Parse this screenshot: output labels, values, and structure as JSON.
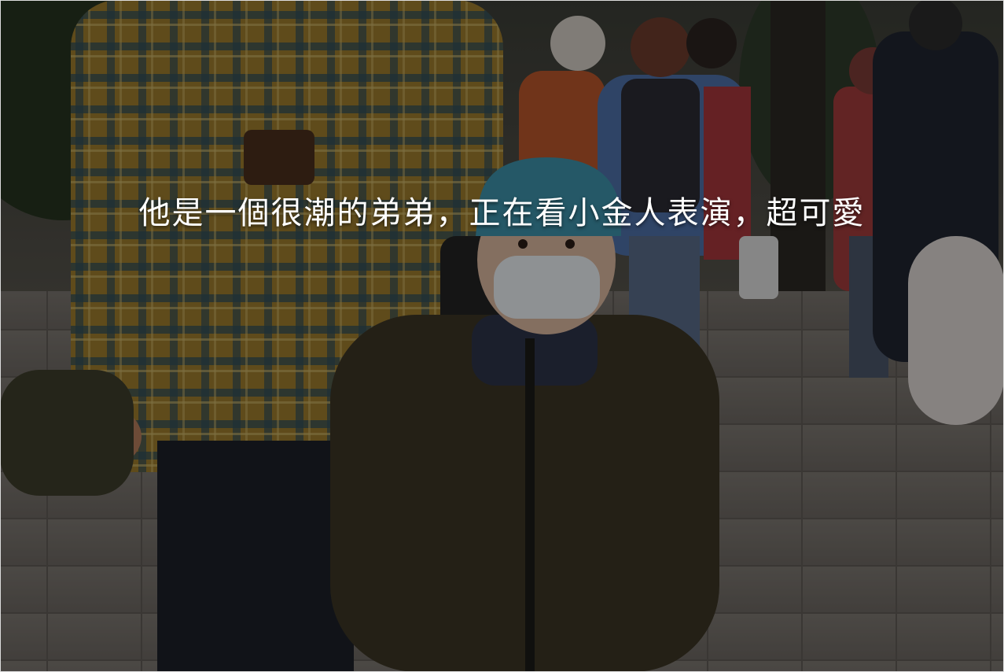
{
  "caption": {
    "text": "他是一個很潮的弟弟，正在看小金人表演，超可愛"
  },
  "photo": {
    "subject": "child-in-blue-cap-and-mask",
    "palette": {
      "pavement": "#6f6a66",
      "jacket": "#3a3424",
      "cap": "#3d8fa6",
      "plaid": "#8a6a2a",
      "overlay": "#000000"
    }
  }
}
